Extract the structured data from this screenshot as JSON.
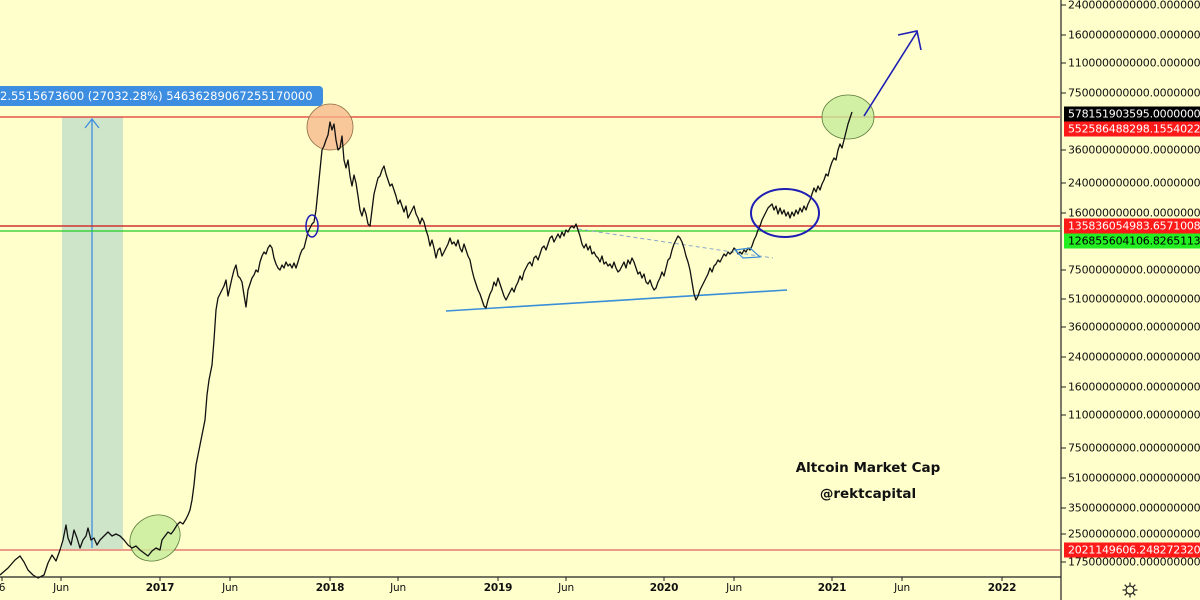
{
  "chart_data": {
    "type": "line",
    "title": "Altcoin Market Cap",
    "subtitle": "@rektcapital",
    "xlabel": "",
    "ylabel": "",
    "y_scale": "log",
    "grid": false,
    "legend_position": "none",
    "x_tick_labels": [
      "Jun",
      "2017",
      "Jun",
      "2018",
      "Jun",
      "2019",
      "Jun",
      "2020",
      "Jun",
      "2021",
      "Jun",
      "2022"
    ],
    "y_tick_labels": [
      "2400000000000.0000000000",
      "1600000000000.0000000000",
      "1100000000000.0000000000",
      "750000000000.0000000000",
      "360000000000.0000000000",
      "240000000000.0000000000",
      "160000000000.0000000000",
      "75000000000.0000000000",
      "51000000000.0000000000",
      "36000000000.0000000000",
      "24000000000.0000000000",
      "16000000000.0000000000",
      "11000000000.0000000000",
      "7500000000.0000000000",
      "5100000000.0000000000",
      "3500000000.0000000000",
      "2500000000.0000000000",
      "1750000000.0000000000"
    ],
    "series": [
      {
        "name": "Altcoin Market Cap (USD)",
        "x": [
          "2016-02",
          "2016-04",
          "2016-06",
          "2016-08",
          "2016-10",
          "2016-12",
          "2017-02",
          "2017-04",
          "2017-05",
          "2017-06",
          "2017-08",
          "2017-10",
          "2017-12",
          "2018-01",
          "2018-03",
          "2018-05",
          "2018-07",
          "2018-09",
          "2018-12",
          "2019-02",
          "2019-04",
          "2019-06",
          "2019-08",
          "2019-10",
          "2019-12",
          "2020-02",
          "2020-03",
          "2020-05",
          "2020-07",
          "2020-08",
          "2020-10",
          "2020-12",
          "2021-01",
          "2021-02"
        ],
        "values": [
          1800000000.0,
          1900000000.0,
          2300000000.0,
          2400000000.0,
          2300000000.0,
          2000000000.0,
          2800000000.0,
          7000000000.0,
          16000000000.0,
          60000000000.0,
          85000000000.0,
          90000000000.0,
          160000000000.0,
          500000000000.0,
          300000000000.0,
          320000000000.0,
          170000000000.0,
          110000000000.0,
          48000000000.0,
          55000000000.0,
          90000000000.0,
          135000000000.0,
          95000000000.0,
          75000000000.0,
          62000000000.0,
          120000000000.0,
          52000000000.0,
          75000000000.0,
          95000000000.0,
          160000000000.0,
          150000000000.0,
          200000000000.0,
          360000000000.0,
          578000000000.0
        ]
      }
    ],
    "horizontal_levels": [
      {
        "label": "578151903595.0000000000",
        "value": 578151903595.0,
        "color": "#000000",
        "kind": "last-price"
      },
      {
        "label": "552586488298.1554022400",
        "value": 552586488298.1554,
        "color": "#ff0000",
        "kind": "resistance"
      },
      {
        "label": "135836054983.6571008000",
        "value": 135836054983.6571,
        "color": "#ff0000",
        "kind": "resistance"
      },
      {
        "label": "126855604106.8265113600",
        "value": 126855604106.8265,
        "color": "#00dd00",
        "kind": "support"
      },
      {
        "label": "2021149606.2482723200",
        "value": 2021149606.2482724,
        "color": "#ff0000",
        "kind": "support"
      }
    ],
    "annotations": [
      {
        "type": "measure",
        "text": "2.5515673600 (27032.28%) 54636289067255170000"
      },
      {
        "type": "circle",
        "color": "#f4a582",
        "note": "2018 top"
      },
      {
        "type": "circle",
        "color": "#b8e08a",
        "note": "late 2016 bottom"
      },
      {
        "type": "circle",
        "color": "#b8e08a",
        "note": "2021 retest of top"
      },
      {
        "type": "ellipse",
        "color": "#1e1eb4",
        "note": "consolidation above breakout 2020"
      },
      {
        "type": "trendline",
        "color": "#3a8fd8",
        "note": "rising support 2019-2020"
      },
      {
        "type": "arrow",
        "color": "#1e1eb4",
        "note": "projected breakout up"
      }
    ]
  },
  "chart": {
    "measure_tooltip": "2.5515673600 (27032.28%) 54636289067255170000",
    "watermark_title": "Altcoin Market Cap",
    "watermark_author": "@rektcapital",
    "price_badges": [
      {
        "text": "578151903595.0000000000",
        "bg": "#000000",
        "fg": "#ffffff",
        "y": 114
      },
      {
        "text": "552586488298.1554022400",
        "bg": "#ff1a1a",
        "fg": "#ffffff",
        "y": 129
      },
      {
        "text": "135836054983.6571008000",
        "bg": "#ff1a1a",
        "fg": "#ffffff",
        "y": 226
      },
      {
        "text": "126855604106.8265113600",
        "bg": "#22ee22",
        "fg": "#000000",
        "y": 241
      },
      {
        "text": "2021149606.2482723200",
        "bg": "#ff1a1a",
        "fg": "#ffffff",
        "y": 550
      }
    ],
    "y_ticks": [
      {
        "label": "2400000000000.0000000000",
        "y": 5
      },
      {
        "label": "1600000000000.0000000000",
        "y": 35
      },
      {
        "label": "1100000000000.0000000000",
        "y": 63
      },
      {
        "label": "750000000000.0000000000",
        "y": 93
      },
      {
        "label": "360000000000.0000000000",
        "y": 150
      },
      {
        "label": "240000000000.0000000000",
        "y": 183
      },
      {
        "label": "160000000000.0000000000",
        "y": 213
      },
      {
        "label": "75000000000.0000000000",
        "y": 270
      },
      {
        "label": "51000000000.0000000000",
        "y": 299
      },
      {
        "label": "36000000000.0000000000",
        "y": 327
      },
      {
        "label": "24000000000.0000000000",
        "y": 357
      },
      {
        "label": "16000000000.0000000000",
        "y": 387
      },
      {
        "label": "11000000000.0000000000",
        "y": 415
      },
      {
        "label": "7500000000.0000000000",
        "y": 448
      },
      {
        "label": "5100000000.0000000000",
        "y": 478
      },
      {
        "label": "3500000000.0000000000",
        "y": 508
      },
      {
        "label": "2500000000.0000000000",
        "y": 534
      },
      {
        "label": "1750000000.0000000000",
        "y": 562
      }
    ],
    "x_ticks": [
      {
        "label": "6",
        "x": 2,
        "year": false
      },
      {
        "label": "Jun",
        "x": 61,
        "year": false
      },
      {
        "label": "2017",
        "x": 160,
        "year": true
      },
      {
        "label": "Jun",
        "x": 230,
        "year": false
      },
      {
        "label": "2018",
        "x": 330,
        "year": true
      },
      {
        "label": "Jun",
        "x": 398,
        "year": false
      },
      {
        "label": "2019",
        "x": 498,
        "year": true
      },
      {
        "label": "Jun",
        "x": 566,
        "year": false
      },
      {
        "label": "2020",
        "x": 664,
        "year": true
      },
      {
        "label": "Jun",
        "x": 734,
        "year": false
      },
      {
        "label": "2021",
        "x": 832,
        "year": true
      },
      {
        "label": "Jun",
        "x": 902,
        "year": false
      },
      {
        "label": "2022",
        "x": 1002,
        "year": true
      }
    ],
    "settings_icon": "gear-icon"
  }
}
